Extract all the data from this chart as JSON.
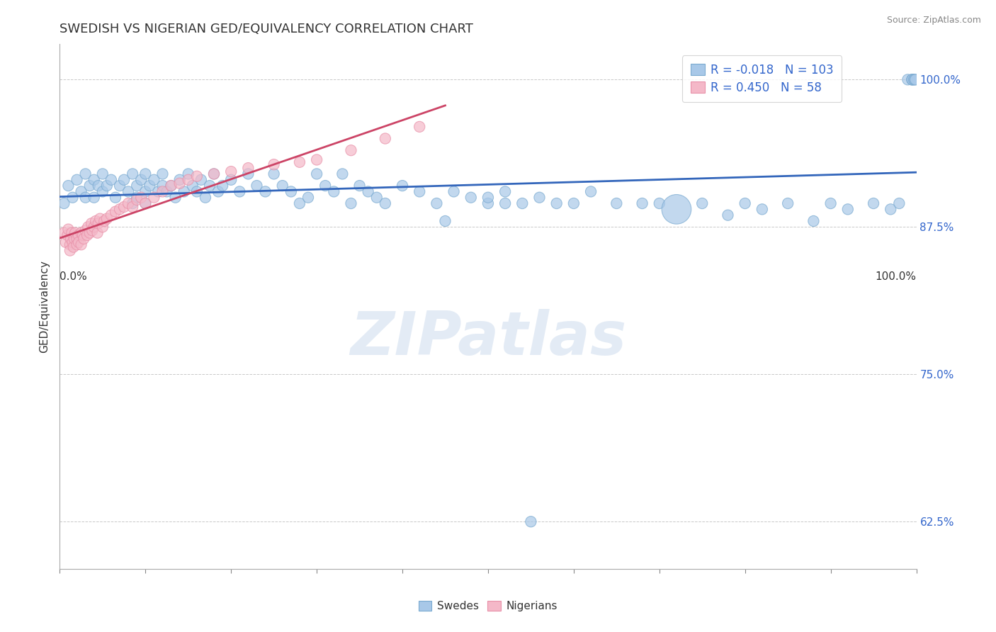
{
  "title": "SWEDISH VS NIGERIAN GED/EQUIVALENCY CORRELATION CHART",
  "source": "Source: ZipAtlas.com",
  "ylabel": "GED/Equivalency",
  "yticks": [
    0.625,
    0.75,
    0.875,
    1.0
  ],
  "ytick_labels": [
    "62.5%",
    "75.0%",
    "87.5%",
    "100.0%"
  ],
  "xlim": [
    0.0,
    1.0
  ],
  "ylim": [
    0.585,
    1.03
  ],
  "blue_color": "#a8c8e8",
  "pink_color": "#f4b8c8",
  "blue_edge_color": "#7aaad0",
  "pink_edge_color": "#e890a8",
  "blue_line_color": "#3366bb",
  "pink_line_color": "#cc4466",
  "legend_r_blue": "-0.018",
  "legend_n_blue": "103",
  "legend_r_pink": "0.450",
  "legend_n_pink": "58",
  "watermark": "ZIPatlas",
  "background_color": "#ffffff",
  "swedes_x": [
    0.005,
    0.01,
    0.015,
    0.02,
    0.025,
    0.03,
    0.03,
    0.035,
    0.04,
    0.04,
    0.045,
    0.05,
    0.05,
    0.055,
    0.06,
    0.065,
    0.07,
    0.075,
    0.08,
    0.085,
    0.085,
    0.09,
    0.09,
    0.095,
    0.1,
    0.1,
    0.1,
    0.105,
    0.11,
    0.115,
    0.12,
    0.12,
    0.125,
    0.13,
    0.135,
    0.14,
    0.145,
    0.15,
    0.155,
    0.16,
    0.165,
    0.17,
    0.175,
    0.18,
    0.185,
    0.19,
    0.2,
    0.21,
    0.22,
    0.23,
    0.24,
    0.25,
    0.26,
    0.27,
    0.28,
    0.29,
    0.3,
    0.31,
    0.32,
    0.33,
    0.34,
    0.35,
    0.36,
    0.37,
    0.38,
    0.4,
    0.42,
    0.44,
    0.46,
    0.48,
    0.5,
    0.52,
    0.54,
    0.56,
    0.58,
    0.6,
    0.62,
    0.65,
    0.68,
    0.7,
    0.72,
    0.75,
    0.78,
    0.8,
    0.82,
    0.85,
    0.88,
    0.9,
    0.92,
    0.95,
    0.97,
    0.98,
    0.99,
    0.995,
    0.995,
    0.995,
    0.997,
    0.998,
    0.999,
    0.45,
    0.5,
    0.52,
    0.55
  ],
  "swedes_y": [
    0.895,
    0.91,
    0.9,
    0.915,
    0.905,
    0.92,
    0.9,
    0.91,
    0.915,
    0.9,
    0.91,
    0.92,
    0.905,
    0.91,
    0.915,
    0.9,
    0.91,
    0.915,
    0.905,
    0.92,
    0.895,
    0.91,
    0.9,
    0.915,
    0.92,
    0.905,
    0.895,
    0.91,
    0.915,
    0.905,
    0.92,
    0.91,
    0.905,
    0.91,
    0.9,
    0.915,
    0.905,
    0.92,
    0.91,
    0.905,
    0.915,
    0.9,
    0.91,
    0.92,
    0.905,
    0.91,
    0.915,
    0.905,
    0.92,
    0.91,
    0.905,
    0.92,
    0.91,
    0.905,
    0.895,
    0.9,
    0.92,
    0.91,
    0.905,
    0.92,
    0.895,
    0.91,
    0.905,
    0.9,
    0.895,
    0.91,
    0.905,
    0.895,
    0.905,
    0.9,
    0.895,
    0.905,
    0.895,
    0.9,
    0.895,
    0.895,
    0.905,
    0.895,
    0.895,
    0.895,
    0.89,
    0.895,
    0.885,
    0.895,
    0.89,
    0.895,
    0.88,
    0.895,
    0.89,
    0.895,
    0.89,
    0.895,
    1.0,
    1.0,
    1.0,
    1.0,
    1.0,
    1.0,
    1.0,
    0.88,
    0.9,
    0.895,
    0.625
  ],
  "swedes_large": [
    0,
    80
  ],
  "nigerians_x": [
    0.005,
    0.007,
    0.009,
    0.01,
    0.012,
    0.012,
    0.013,
    0.014,
    0.015,
    0.016,
    0.017,
    0.018,
    0.02,
    0.02,
    0.022,
    0.022,
    0.025,
    0.025,
    0.027,
    0.028,
    0.03,
    0.032,
    0.033,
    0.035,
    0.037,
    0.038,
    0.04,
    0.042,
    0.044,
    0.045,
    0.047,
    0.05,
    0.052,
    0.055,
    0.06,
    0.065,
    0.07,
    0.075,
    0.08,
    0.085,
    0.09,
    0.095,
    0.1,
    0.11,
    0.12,
    0.13,
    0.14,
    0.15,
    0.16,
    0.18,
    0.2,
    0.22,
    0.25,
    0.28,
    0.3,
    0.34,
    0.38,
    0.42
  ],
  "nigerians_y": [
    0.87,
    0.862,
    0.868,
    0.873,
    0.86,
    0.855,
    0.865,
    0.87,
    0.862,
    0.858,
    0.865,
    0.87,
    0.865,
    0.86,
    0.868,
    0.862,
    0.87,
    0.86,
    0.868,
    0.865,
    0.872,
    0.868,
    0.875,
    0.87,
    0.878,
    0.872,
    0.875,
    0.88,
    0.87,
    0.878,
    0.882,
    0.875,
    0.88,
    0.882,
    0.885,
    0.888,
    0.89,
    0.892,
    0.895,
    0.892,
    0.898,
    0.9,
    0.895,
    0.9,
    0.905,
    0.91,
    0.912,
    0.915,
    0.918,
    0.92,
    0.922,
    0.925,
    0.928,
    0.93,
    0.932,
    0.94,
    0.95,
    0.96
  ],
  "xticks": [
    0.0,
    0.1,
    0.2,
    0.3,
    0.4,
    0.5,
    0.6,
    0.7,
    0.8,
    0.9,
    1.0
  ],
  "xtick_labels": [
    "",
    "",
    "",
    "",
    "",
    "",
    "",
    "",
    "",
    "",
    ""
  ],
  "dot_size": 200
}
